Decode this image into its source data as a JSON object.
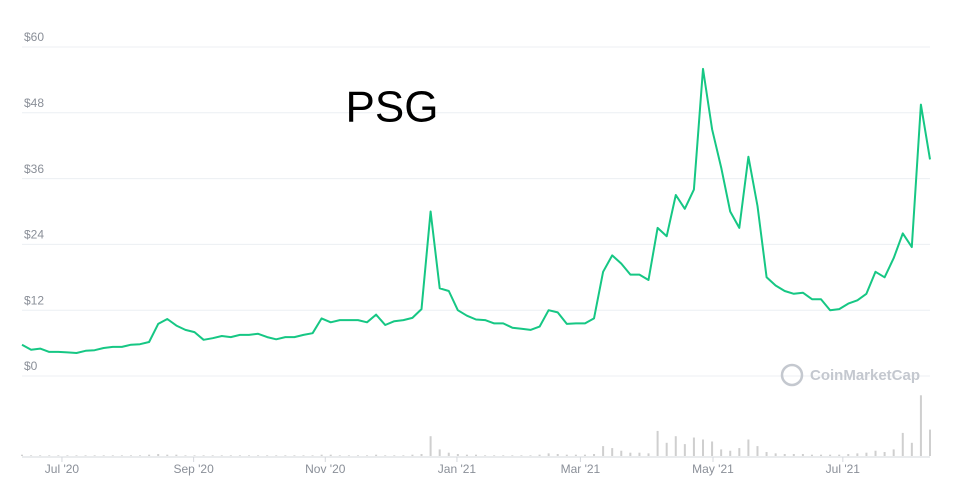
{
  "chart_data": {
    "type": "line",
    "title": "PSG",
    "watermark": "CoinMarketCap",
    "series": [
      {
        "color": "#16c784",
        "values": [
          5.7,
          4.8,
          5.0,
          4.4,
          4.4,
          4.3,
          4.2,
          4.6,
          4.7,
          5.1,
          5.3,
          5.3,
          5.7,
          5.8,
          6.2,
          9.5,
          10.4,
          9.2,
          8.4,
          8.0,
          6.6,
          6.9,
          7.3,
          7.1,
          7.5,
          7.5,
          7.7,
          7.1,
          6.7,
          7.1,
          7.1,
          7.5,
          7.8,
          10.5,
          9.8,
          10.2,
          10.2,
          10.2,
          9.8,
          11.2,
          9.3,
          10.0,
          10.2,
          10.6,
          12.2,
          30.0,
          16.0,
          15.5,
          12.0,
          11.0,
          10.3,
          10.2,
          9.6,
          9.6,
          8.8,
          8.6,
          8.4,
          9.0,
          12.0,
          11.6,
          9.5,
          9.6,
          9.6,
          10.5,
          19.0,
          22.0,
          20.5,
          18.5,
          18.5,
          17.5,
          27.0,
          25.5,
          33.0,
          30.5,
          34.0,
          56.0,
          45.0,
          38.0,
          30.0,
          27.0,
          40.0,
          31.0,
          18.0,
          16.5,
          15.5,
          15.0,
          15.2,
          14.0,
          14.0,
          12.0,
          12.2,
          13.2,
          13.8,
          15.0,
          19.0,
          18.0,
          21.5,
          26.0,
          23.5,
          49.5,
          39.5
        ]
      }
    ],
    "volume": {
      "color": "#cfcfcf",
      "ylim": [
        0,
        100
      ],
      "values": [
        2,
        1,
        1,
        1,
        1,
        1,
        1,
        1,
        1,
        1,
        1,
        1,
        1,
        1,
        2,
        3,
        2,
        2,
        1,
        1,
        1,
        1,
        1,
        1,
        1,
        1,
        1,
        1,
        1,
        1,
        1,
        1,
        1,
        2,
        2,
        1,
        1,
        1,
        1,
        2,
        1,
        1,
        1,
        2,
        3,
        30,
        10,
        5,
        3,
        2,
        2,
        1,
        1,
        1,
        1,
        1,
        1,
        2,
        4,
        3,
        2,
        2,
        2,
        3,
        15,
        12,
        8,
        5,
        5,
        4,
        38,
        20,
        30,
        18,
        28,
        25,
        22,
        10,
        8,
        12,
        25,
        15,
        6,
        4,
        3,
        3,
        3,
        2,
        2,
        2,
        2,
        3,
        4,
        5,
        8,
        6,
        10,
        35,
        20,
        92,
        40
      ]
    },
    "xlim": [
      0,
      100
    ],
    "xticks": [
      {
        "value": 4.4,
        "label": "Jul '20"
      },
      {
        "value": 18.9,
        "label": "Sep '20"
      },
      {
        "value": 33.4,
        "label": "Nov '20"
      },
      {
        "value": 47.9,
        "label": "Jan '21"
      },
      {
        "value": 61.5,
        "label": "Mar '21"
      },
      {
        "value": 76.1,
        "label": "May '21"
      },
      {
        "value": 90.4,
        "label": "Jul '21"
      }
    ],
    "ylim": [
      0,
      60
    ],
    "yticks": [
      {
        "value": 0,
        "label": "$0"
      },
      {
        "value": 12,
        "label": "$12"
      },
      {
        "value": 24,
        "label": "$24"
      },
      {
        "value": 36,
        "label": "$36"
      },
      {
        "value": 48,
        "label": "$48"
      },
      {
        "value": 60,
        "label": "$60"
      }
    ],
    "grid": true
  }
}
